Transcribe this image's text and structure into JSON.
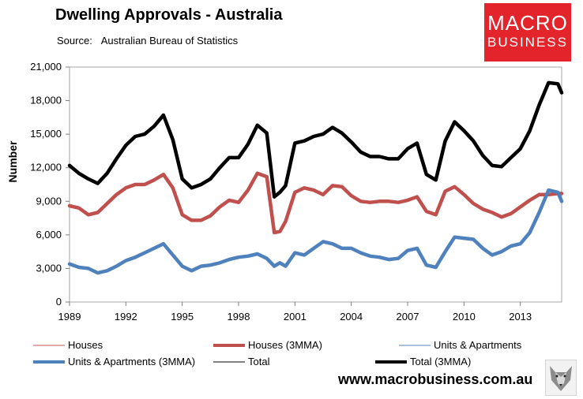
{
  "header": {
    "title": "Dwelling Approvals - Australia",
    "source_label": "Source:",
    "source_value": "Australian Bureau of Statistics"
  },
  "logo": {
    "line1": "MACRO",
    "line2": "BUSINESS"
  },
  "footer": {
    "url": "www.macrobusiness.com.au"
  },
  "colors": {
    "houses": "#c0504d",
    "units": "#4f81bd",
    "total": "#000000",
    "logo_bg": "#e3252b"
  },
  "chart_data": {
    "type": "line",
    "title": "Dwelling Approvals - Australia",
    "xlabel": "",
    "ylabel": "Number",
    "ylim": [
      0,
      21000
    ],
    "xlim": [
      1989.0,
      2015.2
    ],
    "yticks": [
      0,
      3000,
      6000,
      9000,
      12000,
      15000,
      18000,
      21000
    ],
    "ytick_labels": [
      "0",
      "3,000",
      "6,000",
      "9,000",
      "12,000",
      "15,000",
      "18,000",
      "21,000"
    ],
    "xticks": [
      1989,
      1992,
      1995,
      1998,
      2001,
      2004,
      2007,
      2010,
      2013
    ],
    "xtick_labels": [
      "1989",
      "1992",
      "1995",
      "1998",
      "2001",
      "2004",
      "2007",
      "2010",
      "2013"
    ],
    "grid": false,
    "legend_position": "bottom",
    "x": [
      1989.0,
      1989.5,
      1990.0,
      1990.5,
      1991.0,
      1991.5,
      1992.0,
      1992.5,
      1993.0,
      1993.5,
      1994.0,
      1994.5,
      1995.0,
      1995.5,
      1996.0,
      1996.5,
      1997.0,
      1997.5,
      1998.0,
      1998.5,
      1999.0,
      1999.5,
      1999.9,
      2000.2,
      2000.5,
      2001.0,
      2001.5,
      2002.0,
      2002.5,
      2003.0,
      2003.5,
      2004.0,
      2004.5,
      2005.0,
      2005.5,
      2006.0,
      2006.5,
      2007.0,
      2007.5,
      2008.0,
      2008.5,
      2009.0,
      2009.5,
      2010.0,
      2010.5,
      2011.0,
      2011.5,
      2012.0,
      2012.5,
      2013.0,
      2013.5,
      2014.0,
      2014.5,
      2015.0,
      2015.2
    ],
    "series": [
      {
        "name": "Houses",
        "style": "thin",
        "color": "#c0504d",
        "values": [
          8600,
          8400,
          7800,
          8000,
          8800,
          9600,
          10200,
          10500,
          10500,
          10900,
          11400,
          10200,
          7800,
          7300,
          7300,
          7700,
          8500,
          9100,
          8900,
          10000,
          11500,
          11200,
          6200,
          6300,
          7200,
          9800,
          10200,
          10000,
          9600,
          10400,
          10300,
          9500,
          9000,
          8900,
          9000,
          9000,
          8900,
          9100,
          9400,
          8100,
          7800,
          9900,
          10300,
          9600,
          8800,
          8300,
          8000,
          7600,
          7900,
          8500,
          9100,
          9600,
          9600,
          9700,
          9700
        ]
      },
      {
        "name": "Houses (3MMA)",
        "style": "thick",
        "color": "#c0504d",
        "values": [
          8600,
          8400,
          7800,
          8000,
          8800,
          9600,
          10200,
          10500,
          10500,
          10900,
          11400,
          10200,
          7800,
          7300,
          7300,
          7700,
          8500,
          9100,
          8900,
          10000,
          11500,
          11200,
          6200,
          6300,
          7200,
          9800,
          10200,
          10000,
          9600,
          10400,
          10300,
          9500,
          9000,
          8900,
          9000,
          9000,
          8900,
          9100,
          9400,
          8100,
          7800,
          9900,
          10300,
          9600,
          8800,
          8300,
          8000,
          7600,
          7900,
          8500,
          9100,
          9600,
          9600,
          9700,
          9700
        ]
      },
      {
        "name": "Units & Apartments",
        "style": "thin",
        "color": "#4f81bd",
        "values": [
          3400,
          3100,
          3000,
          2600,
          2800,
          3200,
          3700,
          4000,
          4400,
          4800,
          5200,
          4200,
          3200,
          2800,
          3200,
          3300,
          3500,
          3800,
          4000,
          4100,
          4300,
          3900,
          3200,
          3500,
          3200,
          4400,
          4200,
          4800,
          5400,
          5200,
          4800,
          4800,
          4400,
          4100,
          4000,
          3800,
          3900,
          4600,
          4800,
          3300,
          3100,
          4500,
          5800,
          5700,
          5600,
          4800,
          4200,
          4500,
          5000,
          5200,
          6200,
          8000,
          10000,
          9800,
          9000
        ]
      },
      {
        "name": "Units & Apartments (3MMA)",
        "style": "thick",
        "color": "#4f81bd",
        "values": [
          3400,
          3100,
          3000,
          2600,
          2800,
          3200,
          3700,
          4000,
          4400,
          4800,
          5200,
          4200,
          3200,
          2800,
          3200,
          3300,
          3500,
          3800,
          4000,
          4100,
          4300,
          3900,
          3200,
          3500,
          3200,
          4400,
          4200,
          4800,
          5400,
          5200,
          4800,
          4800,
          4400,
          4100,
          4000,
          3800,
          3900,
          4600,
          4800,
          3300,
          3100,
          4500,
          5800,
          5700,
          5600,
          4800,
          4200,
          4500,
          5000,
          5200,
          6200,
          8000,
          10000,
          9800,
          9000
        ]
      },
      {
        "name": "Total",
        "style": "thin",
        "color": "#000000",
        "values": [
          12200,
          11500,
          11000,
          10600,
          11500,
          12800,
          14000,
          14800,
          15000,
          15700,
          16700,
          14500,
          11000,
          10200,
          10500,
          11000,
          12000,
          12900,
          12900,
          14100,
          15800,
          15100,
          9400,
          9800,
          10400,
          14200,
          14400,
          14800,
          15000,
          15600,
          15100,
          14300,
          13400,
          13000,
          13000,
          12800,
          12800,
          13700,
          14200,
          11400,
          10900,
          14400,
          16100,
          15300,
          14400,
          13100,
          12200,
          12100,
          12900,
          13700,
          15300,
          17600,
          19600,
          19500,
          18700
        ]
      },
      {
        "name": "Total (3MMA)",
        "style": "thick",
        "color": "#000000",
        "values": [
          12200,
          11500,
          11000,
          10600,
          11500,
          12800,
          14000,
          14800,
          15000,
          15700,
          16700,
          14500,
          11000,
          10200,
          10500,
          11000,
          12000,
          12900,
          12900,
          14100,
          15800,
          15100,
          9400,
          9800,
          10400,
          14200,
          14400,
          14800,
          15000,
          15600,
          15100,
          14300,
          13400,
          13000,
          13000,
          12800,
          12800,
          13700,
          14200,
          11400,
          10900,
          14400,
          16100,
          15300,
          14400,
          13100,
          12200,
          12100,
          12900,
          13700,
          15300,
          17600,
          19600,
          19500,
          18700
        ]
      }
    ]
  }
}
